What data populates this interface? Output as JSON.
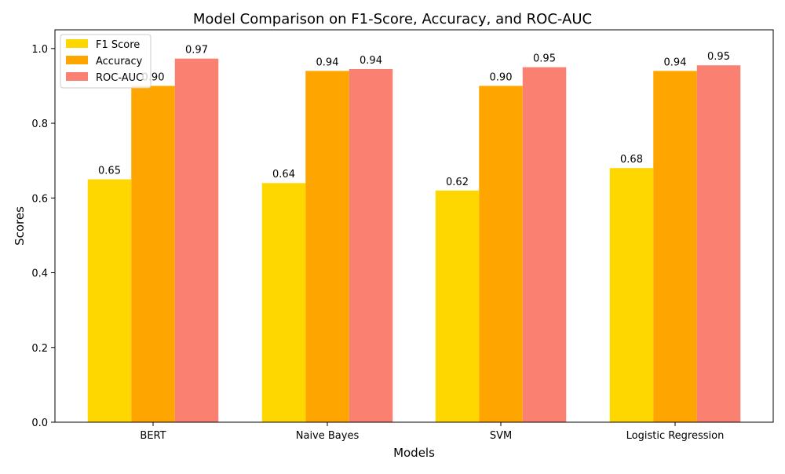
{
  "chart_data": {
    "type": "bar",
    "title": "Model Comparison on F1-Score, Accuracy, and ROC-AUC",
    "xlabel": "Models",
    "ylabel": "Scores",
    "categories": [
      "BERT",
      "Naive Bayes",
      "SVM",
      "Logistic Regression"
    ],
    "series": [
      {
        "name": "F1 Score",
        "color": "#ffd700",
        "values": [
          0.65,
          0.64,
          0.62,
          0.68
        ],
        "labels": [
          "0.65",
          "0.64",
          "0.62",
          "0.68"
        ]
      },
      {
        "name": "Accuracy",
        "color": "#ffa500",
        "values": [
          0.9,
          0.94,
          0.9,
          0.94
        ],
        "labels": [
          "0.90",
          "0.94",
          "0.90",
          "0.94"
        ]
      },
      {
        "name": "ROC-AUC",
        "color": "#fa8072",
        "values": [
          0.973,
          0.945,
          0.95,
          0.955
        ],
        "labels": [
          "0.97",
          "0.94",
          "0.95",
          "0.95"
        ]
      }
    ],
    "ylim": [
      0,
      1.05
    ],
    "yticks": [
      "0.0",
      "0.2",
      "0.4",
      "0.6",
      "0.8",
      "1.0"
    ],
    "grid": false,
    "legend_position": "top-left"
  }
}
